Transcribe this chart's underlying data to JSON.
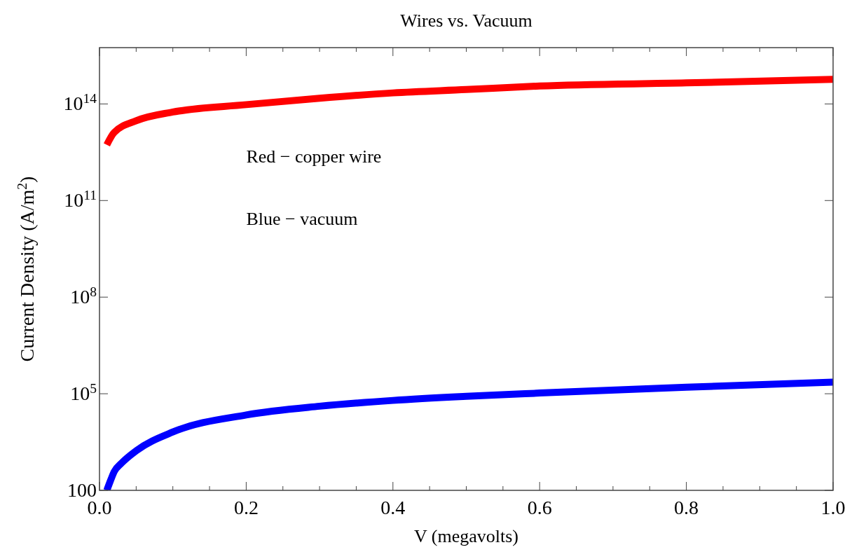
{
  "chart_data": {
    "type": "line",
    "title": "Wires vs. Vacuum",
    "xlabel": "V (megavolts)",
    "ylabel": "Current Density (A/m$^{2}$)",
    "log": "y",
    "grid": false,
    "marker": "none",
    "line_style": "solid",
    "xlim": [
      0,
      1
    ],
    "xticks": [
      {
        "value": 0,
        "label": "0.0"
      },
      {
        "value": 0.05,
        "label": null
      },
      {
        "value": 0.1,
        "label": null
      },
      {
        "value": 0.15,
        "label": null
      },
      0.2,
      {
        "value": 0.25,
        "label": null
      },
      {
        "value": 0.3,
        "label": null
      },
      {
        "value": 0.35,
        "label": null
      },
      0.4,
      {
        "value": 0.45,
        "label": null
      },
      {
        "value": 0.5,
        "label": null
      },
      {
        "value": 0.55,
        "label": null
      },
      0.6,
      {
        "value": 0.65,
        "label": null
      },
      {
        "value": 0.7,
        "label": null
      },
      {
        "value": 0.75,
        "label": null
      },
      0.8,
      {
        "value": 0.85,
        "label": null
      },
      {
        "value": 0.9,
        "label": null
      },
      {
        "value": 0.95,
        "label": null
      },
      {
        "value": 1,
        "label": "1.0"
      }
    ],
    "ylim": [
      100,
      5600000000000000.0
    ],
    "yticks": [
      100,
      {
        "value": 100000,
        "label": "10$^{5}$"
      },
      {
        "value": 100000000,
        "label": "10$^{8}$"
      },
      {
        "value": 100000000000,
        "label": "10$^{11}$"
      },
      {
        "value": 100000000000000,
        "label": "10$^{14}$"
      }
    ],
    "annotations": [
      "Red − copper wire",
      "Blue − vacuum"
    ],
    "series": [
      {
        "color": "#ff0000",
        "x": [
          0.01,
          0.02,
          0.05,
          0.1,
          0.2,
          0.3,
          0.4,
          0.5,
          0.6,
          0.8,
          1.0
        ],
        "values": [
          5400000000000.0,
          13000000000000.0,
          30000000000000.0,
          56000000000000.0,
          95000000000000.0,
          150000000000000.0,
          220000000000000.0,
          280000000000000.0,
          360000000000000.0,
          450000000000000.0,
          580000000000000.0
        ]
      },
      {
        "color": "#0000ff",
        "x": [
          0.01,
          0.015,
          0.02,
          0.03,
          0.05,
          0.1,
          0.2,
          0.3,
          0.4,
          0.5,
          0.6,
          0.8,
          1.0
        ],
        "values": [
          100,
          200,
          380,
          700,
          1700,
          6500,
          22000,
          41000,
          62000,
          83000,
          105000,
          160000,
          230000
        ]
      }
    ]
  }
}
